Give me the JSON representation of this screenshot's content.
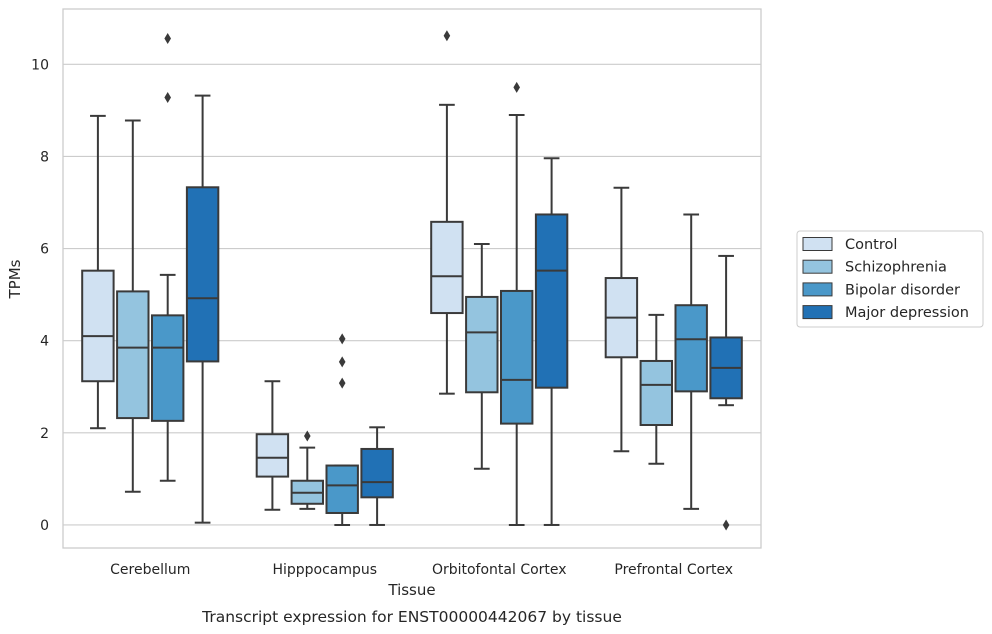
{
  "chart_data": {
    "type": "box",
    "caption": "Transcript expression for ENST00000442067 by tissue",
    "xlabel": "Tissue",
    "ylabel": "TPMs",
    "ylim": [
      -0.5,
      11.2
    ],
    "yticks": [
      "0",
      "2",
      "4",
      "6",
      "8",
      "10"
    ],
    "grid": true,
    "legend_position": "right",
    "categories": [
      "Cerebellum",
      "Hipppocampus",
      "Orbitofontal Cortex",
      "Prefrontal Cortex"
    ],
    "series": [
      {
        "name": "Control",
        "color": "#d0e1f2",
        "boxes": [
          {
            "whislo": 2.1,
            "q1": 3.12,
            "med": 4.1,
            "q3": 5.52,
            "whishi": 8.88,
            "fliers": []
          },
          {
            "whislo": 0.33,
            "q1": 1.05,
            "med": 1.46,
            "q3": 1.97,
            "whishi": 3.12,
            "fliers": []
          },
          {
            "whislo": 2.85,
            "q1": 4.6,
            "med": 5.4,
            "q3": 6.58,
            "whishi": 9.12,
            "fliers": [
              10.62
            ]
          },
          {
            "whislo": 1.6,
            "q1": 3.64,
            "med": 4.5,
            "q3": 5.36,
            "whishi": 7.32,
            "fliers": []
          }
        ]
      },
      {
        "name": "Schizophrenia",
        "color": "#94c4df",
        "boxes": [
          {
            "whislo": 0.72,
            "q1": 2.32,
            "med": 3.85,
            "q3": 5.07,
            "whishi": 8.78,
            "fliers": []
          },
          {
            "whislo": 0.35,
            "q1": 0.46,
            "med": 0.7,
            "q3": 0.96,
            "whishi": 1.68,
            "fliers": [
              1.93
            ]
          },
          {
            "whislo": 1.22,
            "q1": 2.88,
            "med": 4.18,
            "q3": 4.95,
            "whishi": 6.1,
            "fliers": []
          },
          {
            "whislo": 1.33,
            "q1": 2.17,
            "med": 3.04,
            "q3": 3.56,
            "whishi": 4.56,
            "fliers": []
          }
        ]
      },
      {
        "name": "Bipolar disorder",
        "color": "#4a98c9",
        "boxes": [
          {
            "whislo": 0.96,
            "q1": 2.26,
            "med": 3.85,
            "q3": 4.55,
            "whishi": 5.43,
            "fliers": [
              9.28,
              10.56
            ]
          },
          {
            "whislo": 0.0,
            "q1": 0.26,
            "med": 0.86,
            "q3": 1.29,
            "whishi": 1.29,
            "fliers": [
              3.08,
              3.54,
              4.04
            ]
          },
          {
            "whislo": 0.0,
            "q1": 2.2,
            "med": 3.15,
            "q3": 5.08,
            "whishi": 8.9,
            "fliers": [
              9.5
            ]
          },
          {
            "whislo": 0.35,
            "q1": 2.9,
            "med": 4.03,
            "q3": 4.77,
            "whishi": 6.74,
            "fliers": []
          }
        ]
      },
      {
        "name": "Major depression",
        "color": "#2171b5",
        "boxes": [
          {
            "whislo": 0.05,
            "q1": 3.55,
            "med": 4.92,
            "q3": 7.33,
            "whishi": 9.32,
            "fliers": []
          },
          {
            "whislo": 0.0,
            "q1": 0.6,
            "med": 0.93,
            "q3": 1.65,
            "whishi": 2.12,
            "fliers": []
          },
          {
            "whislo": 0.0,
            "q1": 2.98,
            "med": 5.52,
            "q3": 6.74,
            "whishi": 7.96,
            "fliers": []
          },
          {
            "whislo": 2.6,
            "q1": 2.75,
            "med": 3.41,
            "q3": 4.07,
            "whishi": 5.84,
            "fliers": [
              0.0
            ]
          }
        ]
      }
    ]
  }
}
